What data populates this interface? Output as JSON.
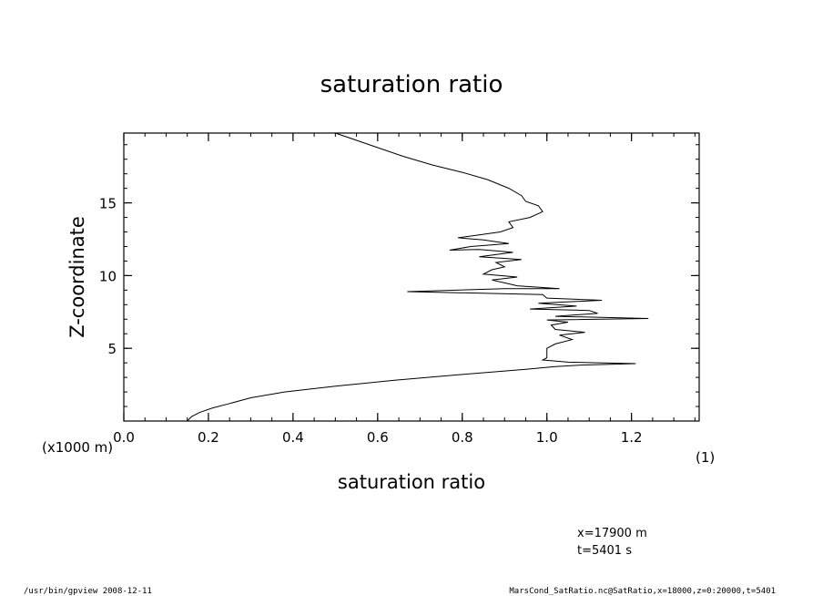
{
  "chart_data": {
    "type": "line",
    "title": "saturation ratio",
    "xlabel": "saturation ratio",
    "xunit": "(1)",
    "ylabel": "Z-coordinate",
    "yunit": "(x1000 m)",
    "xlim": [
      0.0,
      1.36
    ],
    "ylim": [
      0.0,
      19.8
    ],
    "xticks": [
      "0.0",
      "0.2",
      "0.4",
      "0.6",
      "0.8",
      "1.0",
      "1.2"
    ],
    "yticks": [
      "5",
      "10",
      "15"
    ],
    "series": [
      {
        "color": "#000000",
        "points": [
          [
            0.15,
            0.0
          ],
          [
            0.16,
            0.3
          ],
          [
            0.18,
            0.6
          ],
          [
            0.21,
            0.9
          ],
          [
            0.25,
            1.2
          ],
          [
            0.3,
            1.6
          ],
          [
            0.38,
            2.0
          ],
          [
            0.5,
            2.4
          ],
          [
            0.64,
            2.8
          ],
          [
            0.8,
            3.2
          ],
          [
            0.95,
            3.55
          ],
          [
            1.02,
            3.75
          ],
          [
            1.08,
            3.85
          ],
          [
            1.21,
            3.95
          ],
          [
            1.05,
            4.05
          ],
          [
            0.99,
            4.2
          ],
          [
            1.0,
            4.35
          ],
          [
            1.0,
            4.6
          ],
          [
            1.0,
            5.0
          ],
          [
            1.02,
            5.3
          ],
          [
            1.06,
            5.6
          ],
          [
            1.03,
            5.9
          ],
          [
            1.09,
            6.1
          ],
          [
            1.02,
            6.3
          ],
          [
            1.01,
            6.6
          ],
          [
            1.05,
            6.8
          ],
          [
            1.0,
            6.95
          ],
          [
            1.24,
            7.05
          ],
          [
            1.02,
            7.2
          ],
          [
            1.12,
            7.4
          ],
          [
            1.1,
            7.6
          ],
          [
            0.96,
            7.7
          ],
          [
            1.07,
            7.9
          ],
          [
            0.98,
            8.1
          ],
          [
            1.13,
            8.3
          ],
          [
            1.0,
            8.45
          ],
          [
            0.99,
            8.7
          ],
          [
            0.67,
            8.9
          ],
          [
            0.9,
            9.1
          ],
          [
            1.03,
            9.1
          ],
          [
            0.93,
            9.3
          ],
          [
            0.9,
            9.5
          ],
          [
            0.87,
            9.7
          ],
          [
            0.93,
            9.9
          ],
          [
            0.85,
            10.1
          ],
          [
            0.87,
            10.4
          ],
          [
            0.9,
            10.6
          ],
          [
            0.88,
            10.9
          ],
          [
            0.94,
            11.1
          ],
          [
            0.84,
            11.3
          ],
          [
            0.92,
            11.6
          ],
          [
            0.84,
            11.8
          ],
          [
            0.77,
            11.75
          ],
          [
            0.82,
            12.0
          ],
          [
            0.91,
            12.2
          ],
          [
            0.85,
            12.45
          ],
          [
            0.79,
            12.6
          ],
          [
            0.84,
            12.8
          ],
          [
            0.89,
            13.0
          ],
          [
            0.92,
            13.3
          ],
          [
            0.91,
            13.7
          ],
          [
            0.96,
            14.0
          ],
          [
            0.99,
            14.4
          ],
          [
            0.98,
            14.8
          ],
          [
            0.95,
            15.1
          ],
          [
            0.94,
            15.5
          ],
          [
            0.91,
            16.0
          ],
          [
            0.86,
            16.6
          ],
          [
            0.8,
            17.1
          ],
          [
            0.73,
            17.6
          ],
          [
            0.66,
            18.2
          ],
          [
            0.59,
            18.9
          ],
          [
            0.5,
            19.8
          ]
        ]
      }
    ]
  },
  "annotations": {
    "x_position": "x=17900  m",
    "t_position": "t=5401  s"
  },
  "footer": {
    "left": "/usr/bin/gpview   2008-12-11",
    "right": "MarsCond_SatRatio.nc@SatRatio,x=18000,z=0:20000,t=5401"
  }
}
